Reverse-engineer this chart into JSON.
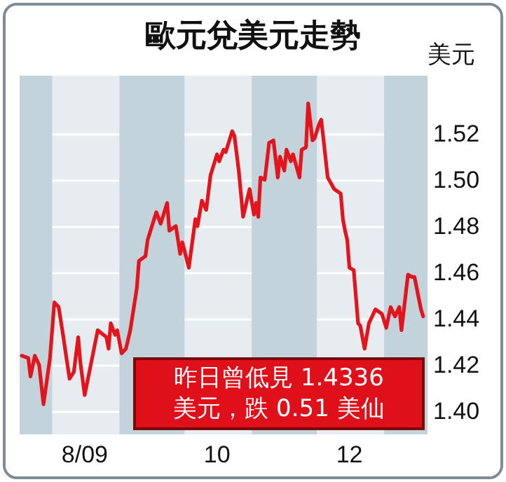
{
  "chart_data": {
    "type": "line",
    "title": "歐元兌美元走勢",
    "ylabel": "美元",
    "annotations": [
      "昨日曾低見 1.4336\n美元，跌 0.51 美仙"
    ],
    "x": [
      "2009-07-18",
      "2009-07-21",
      "2009-07-22",
      "2009-07-24",
      "2009-07-26",
      "2009-07-28",
      "2009-07-31",
      "2009-08-02",
      "2009-08-04",
      "2009-08-06",
      "2009-08-09",
      "2009-08-11",
      "2009-08-13",
      "2009-08-14",
      "2009-08-16",
      "2009-08-19",
      "2009-08-22",
      "2009-08-26",
      "2009-08-27",
      "2009-08-28",
      "2009-08-30",
      "2009-08-31",
      "2009-09-02",
      "2009-09-04",
      "2009-09-06",
      "2009-09-09",
      "2009-09-10",
      "2009-09-13",
      "2009-09-14",
      "2009-09-18",
      "2009-09-20",
      "2009-09-23",
      "2009-09-24",
      "2009-09-27",
      "2009-09-29",
      "2009-09-30",
      "2009-10-03",
      "2009-10-06",
      "2009-10-07",
      "2009-10-09",
      "2009-10-11",
      "2009-10-13",
      "2009-10-16",
      "2009-10-17",
      "2009-10-19",
      "2009-10-20",
      "2009-10-23",
      "2009-10-24",
      "2009-10-26",
      "2009-10-28",
      "2009-10-29",
      "2009-10-31",
      "2009-11-02",
      "2009-11-03",
      "2009-11-04",
      "2009-11-05",
      "2009-11-07",
      "2009-11-09",
      "2009-11-11",
      "2009-11-13",
      "2009-11-14",
      "2009-11-16",
      "2009-11-17",
      "2009-11-19",
      "2009-11-20",
      "2009-11-23",
      "2009-11-24",
      "2009-11-26",
      "2009-11-27",
      "2009-11-29",
      "2009-11-30",
      "2009-12-02",
      "2009-12-03",
      "2009-12-04",
      "2009-12-06",
      "2009-12-09",
      "2009-12-12",
      "2009-12-13",
      "2009-12-14",
      "2009-12-15",
      "2009-12-16",
      "2009-12-18",
      "2009-12-20",
      "2009-12-21",
      "2009-12-23",
      "2009-12-25",
      "2009-12-28",
      "2009-12-31",
      "2010-01-02",
      "2010-01-04",
      "2010-01-06",
      "2010-01-08",
      "2010-01-09",
      "2010-01-12",
      "2010-01-14",
      "2010-01-15",
      "2010-01-18",
      "2010-01-19"
    ],
    "series": [
      {
        "color": "#e3141b",
        "values": [
          1.424,
          1.423,
          1.415,
          1.424,
          1.42,
          1.403,
          1.423,
          1.447,
          1.445,
          1.433,
          1.414,
          1.417,
          1.432,
          1.421,
          1.407,
          1.421,
          1.435,
          1.432,
          1.427,
          1.438,
          1.433,
          1.435,
          1.425,
          1.427,
          1.435,
          1.453,
          1.465,
          1.467,
          1.474,
          1.486,
          1.481,
          1.49,
          1.478,
          1.48,
          1.468,
          1.473,
          1.462,
          1.483,
          1.48,
          1.491,
          1.487,
          1.502,
          1.511,
          1.508,
          1.513,
          1.512,
          1.521,
          1.519,
          1.504,
          1.484,
          1.488,
          1.496,
          1.485,
          1.49,
          1.484,
          1.501,
          1.5,
          1.516,
          1.517,
          1.501,
          1.51,
          1.504,
          1.513,
          1.508,
          1.511,
          1.501,
          1.513,
          1.514,
          1.533,
          1.517,
          1.518,
          1.524,
          1.526,
          1.518,
          1.501,
          1.496,
          1.494,
          1.483,
          1.478,
          1.474,
          1.462,
          1.461,
          1.438,
          1.437,
          1.427,
          1.438,
          1.444,
          1.442,
          1.436,
          1.445,
          1.441,
          1.445,
          1.435,
          1.459,
          1.458,
          1.458,
          1.444,
          1.441
        ]
      }
    ],
    "xlim": [
      "2009-07-17",
      "2010-01-21"
    ],
    "xticks": [
      {
        "value": "2009-08-16",
        "label": "8/09"
      },
      {
        "value": "2009-10-16",
        "label": "10"
      },
      {
        "value": "2009-12-16",
        "label": "12"
      }
    ],
    "ylim": [
      1.39,
      1.545
    ],
    "yticks": [
      {
        "value": 1.4,
        "label": "1.40"
      },
      {
        "value": 1.42,
        "label": "1.42"
      },
      {
        "value": 1.44,
        "label": "1.44"
      },
      {
        "value": 1.46,
        "label": "1.46"
      },
      {
        "value": 1.48,
        "label": "1.48"
      },
      {
        "value": 1.5,
        "label": "1.50"
      },
      {
        "value": 1.52,
        "label": "1.52"
      }
    ],
    "bands": [
      {
        "axis": "x",
        "from": "2009-07-17",
        "to": "2009-08-01",
        "color": "#c3d3dc"
      },
      {
        "axis": "x",
        "from": "2009-09-01",
        "to": "2009-10-01",
        "color": "#c3d3dc"
      },
      {
        "axis": "x",
        "from": "2009-11-01",
        "to": "2009-12-01",
        "color": "#c3d3dc"
      },
      {
        "axis": "x",
        "from": "2010-01-01",
        "to": "2010-01-21",
        "color": "#c3d3dc"
      }
    ],
    "grid": "y",
    "marker": "none",
    "line_style": "solid"
  }
}
